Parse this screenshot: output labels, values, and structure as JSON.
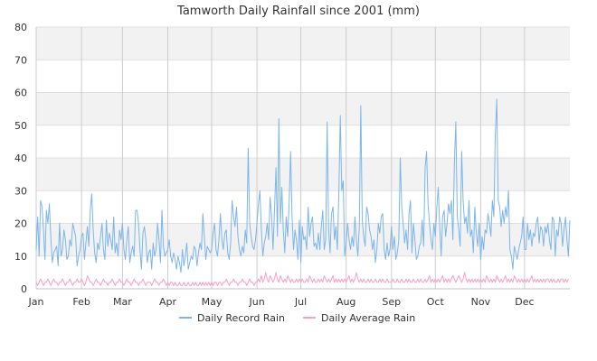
{
  "chart_data": {
    "type": "line",
    "title": "Tamworth Daily Rainfall since 2001 (mm)",
    "xlabel": "",
    "ylabel": "",
    "ylim": [
      0,
      80
    ],
    "yticks": [
      "0",
      "10",
      "20",
      "30",
      "40",
      "50",
      "60",
      "70",
      "80"
    ],
    "x_axis": "day of year, 1 to 366",
    "months": [
      "Jan",
      "Feb",
      "Mar",
      "Apr",
      "May",
      "Jun",
      "Jul",
      "Aug",
      "Sep",
      "Oct",
      "Nov",
      "Dec"
    ],
    "month_start_days": [
      1,
      32,
      60,
      91,
      121,
      152,
      182,
      213,
      244,
      274,
      305,
      335
    ],
    "grid": true,
    "legend_position": "bottom",
    "series": [
      {
        "name": "Daily Record Rain",
        "color": "#7cb5ec",
        "values": [
          12,
          22,
          10,
          27,
          25,
          18,
          9,
          24,
          20,
          26,
          16,
          8,
          11,
          12,
          13,
          7,
          20,
          10,
          12,
          18,
          15,
          9,
          10,
          15,
          13,
          20,
          18,
          16,
          7,
          10,
          12,
          16,
          17,
          9,
          14,
          19,
          13,
          24,
          29,
          18,
          11,
          8,
          14,
          12,
          16,
          20,
          12,
          9,
          21,
          13,
          17,
          15,
          12,
          22,
          11,
          14,
          10,
          18,
          15,
          20,
          12,
          9,
          15,
          19,
          8,
          11,
          13,
          10,
          24,
          24,
          20,
          12,
          6,
          17,
          19,
          15,
          8,
          11,
          12,
          6,
          14,
          10,
          12,
          20,
          15,
          8,
          24,
          13,
          10,
          11,
          12,
          15,
          10,
          8,
          11,
          9,
          6,
          10,
          8,
          5,
          12,
          7,
          10,
          14,
          6,
          8,
          10,
          9,
          13,
          12,
          7,
          11,
          14,
          12,
          23,
          16,
          9,
          13,
          12,
          11,
          12,
          17,
          20,
          12,
          10,
          15,
          23,
          15,
          12,
          17,
          18,
          11,
          9,
          14,
          27,
          22,
          19,
          25,
          16,
          12,
          10,
          13,
          11,
          18,
          14,
          43,
          20,
          16,
          13,
          12,
          15,
          20,
          26,
          30,
          18,
          10,
          14,
          16,
          20,
          15,
          28,
          22,
          12,
          24,
          37,
          16,
          52,
          20,
          31,
          18,
          11,
          22,
          16,
          26,
          42,
          22,
          12,
          18,
          15,
          9,
          21,
          8,
          19,
          15,
          16,
          12,
          25,
          16,
          20,
          22,
          13,
          14,
          12,
          17,
          12,
          19,
          24,
          12,
          15,
          51,
          18,
          11,
          23,
          25,
          15,
          19,
          12,
          29,
          53,
          30,
          33,
          10,
          14,
          20,
          15,
          12,
          16,
          13,
          22,
          15,
          10,
          19,
          56,
          21,
          16,
          13,
          25,
          23,
          18,
          16,
          12,
          15,
          8,
          12,
          20,
          17,
          22,
          23,
          12,
          9,
          14,
          10,
          12,
          19,
          12,
          16,
          9,
          11,
          15,
          40,
          25,
          20,
          14,
          18,
          12,
          23,
          27,
          11,
          20,
          15,
          9,
          10,
          13,
          14,
          21,
          13,
          37,
          42,
          26,
          20,
          15,
          12,
          20,
          16,
          25,
          31,
          19,
          10,
          22,
          24,
          16,
          20,
          26,
          23,
          27,
          15,
          38,
          51,
          22,
          18,
          13,
          42,
          27,
          20,
          22,
          17,
          27,
          16,
          18,
          11,
          25,
          17,
          13,
          20,
          9,
          16,
          12,
          18,
          17,
          23,
          20,
          16,
          27,
          22,
          47,
          58,
          27,
          25,
          19,
          24,
          20,
          25,
          22,
          30,
          12,
          10,
          6,
          13,
          11,
          9,
          12,
          14,
          16,
          22,
          12,
          12,
          20,
          15,
          18,
          13,
          17,
          16,
          20,
          22,
          14,
          19,
          18,
          13,
          19,
          17,
          20,
          15,
          12,
          22,
          21,
          10,
          18,
          16,
          22,
          20,
          13,
          18,
          22,
          15,
          10,
          21
        ]
      },
      {
        "name": "Daily Average Rain",
        "color": "#f7a1c4",
        "values": [
          2,
          1,
          2,
          3,
          2,
          1,
          2,
          2,
          3,
          2,
          1,
          2,
          3,
          2,
          2,
          1,
          2,
          2,
          3,
          2,
          1,
          2,
          2,
          3,
          2,
          1,
          2,
          2,
          3,
          2,
          2,
          3,
          2,
          1,
          2,
          4,
          3,
          2,
          2,
          1,
          2,
          3,
          2,
          2,
          1,
          2,
          3,
          2,
          2,
          1,
          2,
          2,
          3,
          2,
          1,
          2,
          2,
          3,
          2,
          2,
          1,
          2,
          3,
          2,
          2,
          1,
          2,
          3,
          2,
          2,
          1,
          2,
          2,
          3,
          2,
          1,
          2,
          2,
          2,
          1,
          2,
          3,
          2,
          2,
          1,
          2,
          2,
          3,
          2,
          1,
          2,
          1,
          2,
          2,
          1,
          2,
          1,
          1,
          2,
          1,
          1,
          2,
          1,
          1,
          2,
          1,
          1,
          2,
          1,
          2,
          1,
          1,
          2,
          1,
          2,
          1,
          2,
          1,
          2,
          1,
          2,
          1,
          2,
          2,
          1,
          2,
          2,
          1,
          2,
          2,
          3,
          2,
          1,
          2,
          2,
          3,
          2,
          2,
          1,
          2,
          2,
          3,
          2,
          2,
          1,
          2,
          3,
          2,
          2,
          1,
          2,
          2,
          3,
          2,
          4,
          2,
          3,
          5,
          3,
          2,
          4,
          3,
          2,
          3,
          5,
          3,
          2,
          4,
          3,
          2,
          3,
          2,
          4,
          3,
          2,
          3,
          2,
          2,
          3,
          2,
          3,
          2,
          3,
          2,
          2,
          3,
          2,
          4,
          3,
          2,
          3,
          2,
          2,
          3,
          2,
          3,
          2,
          4,
          3,
          2,
          3,
          2,
          3,
          4,
          2,
          3,
          2,
          3,
          2,
          3,
          2,
          3,
          2,
          3,
          4,
          2,
          3,
          2,
          3,
          5,
          3,
          2,
          3,
          2,
          3,
          2,
          2,
          3,
          2,
          3,
          2,
          2,
          3,
          2,
          2,
          3,
          2,
          3,
          2,
          2,
          3,
          2,
          2,
          2,
          3,
          2,
          2,
          3,
          2,
          2,
          3,
          2,
          2,
          3,
          2,
          3,
          2,
          2,
          3,
          2,
          2,
          3,
          2,
          3,
          2,
          2,
          3,
          2,
          3,
          4,
          2,
          3,
          2,
          3,
          2,
          3,
          2,
          3,
          4,
          2,
          3,
          2,
          3,
          2,
          3,
          4,
          3,
          2,
          3,
          4,
          3,
          2,
          3,
          5,
          3,
          2,
          3,
          2,
          3,
          2,
          3,
          2,
          3,
          2,
          3,
          2,
          3,
          2,
          4,
          3,
          2,
          3,
          2,
          3,
          2,
          4,
          3,
          2,
          3,
          2,
          3,
          4,
          2,
          3,
          2,
          3,
          2,
          4,
          3,
          2,
          3,
          2,
          3,
          2,
          3,
          2,
          3,
          2,
          3,
          4,
          2,
          3,
          2,
          3,
          2,
          3,
          2,
          3,
          2,
          3,
          3,
          2,
          3,
          2,
          3,
          2,
          2,
          3,
          2,
          3,
          3,
          2,
          3,
          2,
          3
        ]
      }
    ]
  }
}
